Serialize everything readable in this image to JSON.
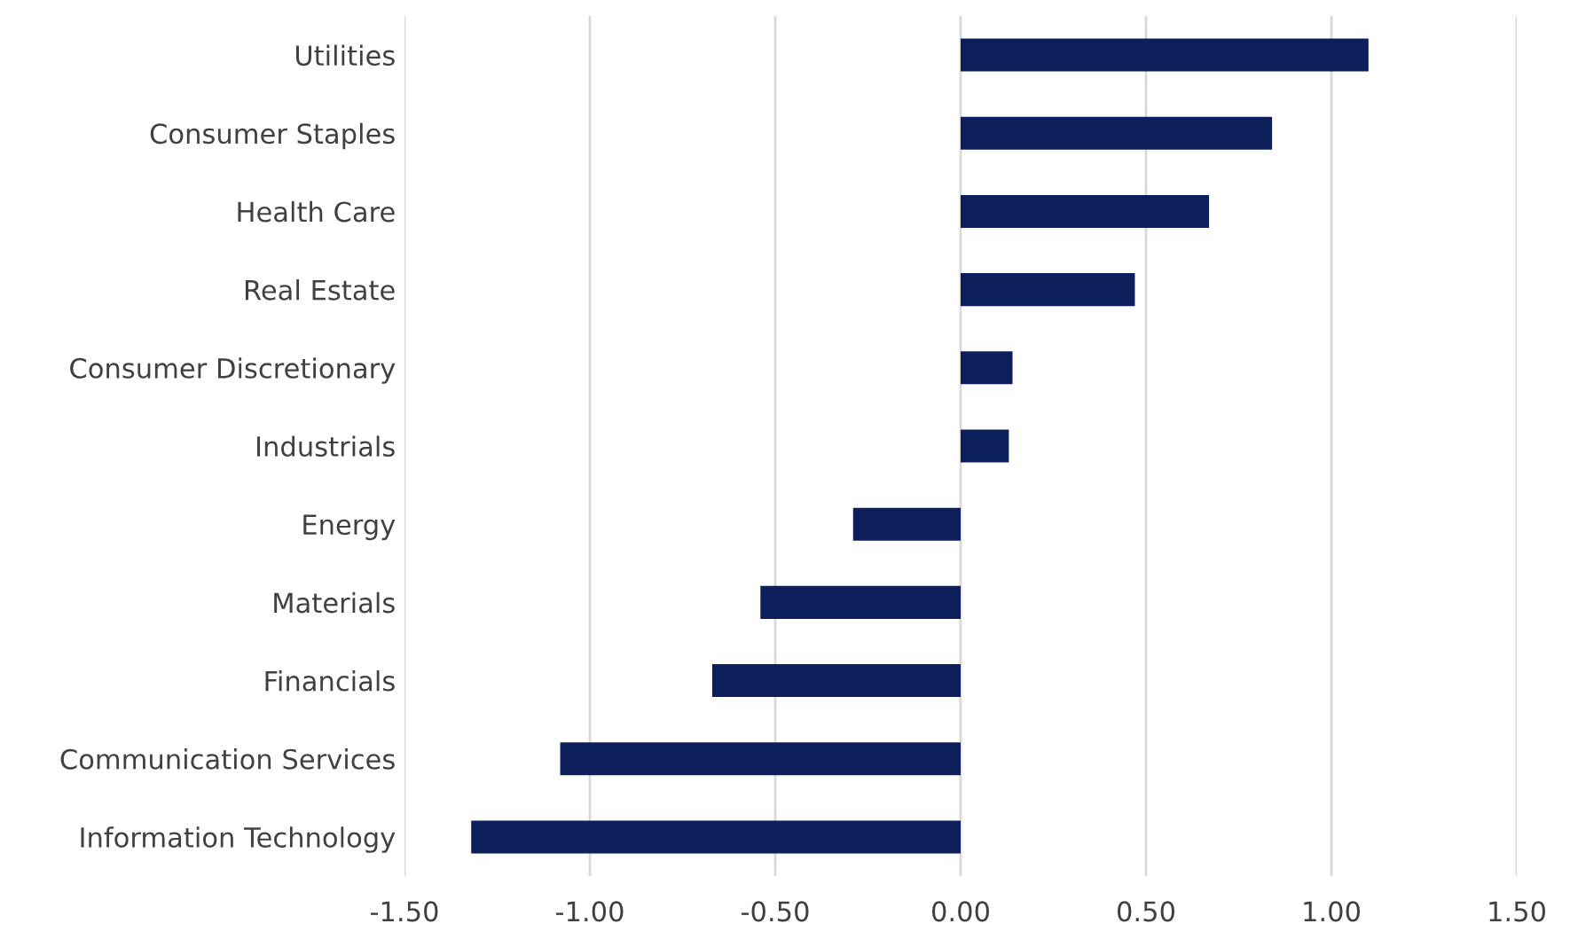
{
  "chart_data": {
    "type": "bar",
    "orientation": "horizontal",
    "categories": [
      "Utilities",
      "Consumer Staples",
      "Health Care",
      "Real Estate",
      "Consumer Discretionary",
      "Industrials",
      "Energy",
      "Materials",
      "Financials",
      "Communication Services",
      "Information Technology"
    ],
    "values": [
      1.1,
      0.84,
      0.67,
      0.47,
      0.14,
      0.13,
      -0.29,
      -0.54,
      -0.67,
      -1.08,
      -1.32
    ],
    "color": "#0c1f5b",
    "xlim": [
      -1.5,
      1.5
    ],
    "xticks": [
      {
        "value": -1.5,
        "label": "-1.50"
      },
      {
        "value": -1.0,
        "label": "-1.00"
      },
      {
        "value": -0.5,
        "label": "-0.50"
      },
      {
        "value": 0,
        "label": "0.00"
      },
      {
        "value": 0.5,
        "label": "0.50"
      },
      {
        "value": 1.0,
        "label": "1.00"
      },
      {
        "value": 1.5,
        "label": "1.50"
      }
    ],
    "grid": "x"
  }
}
